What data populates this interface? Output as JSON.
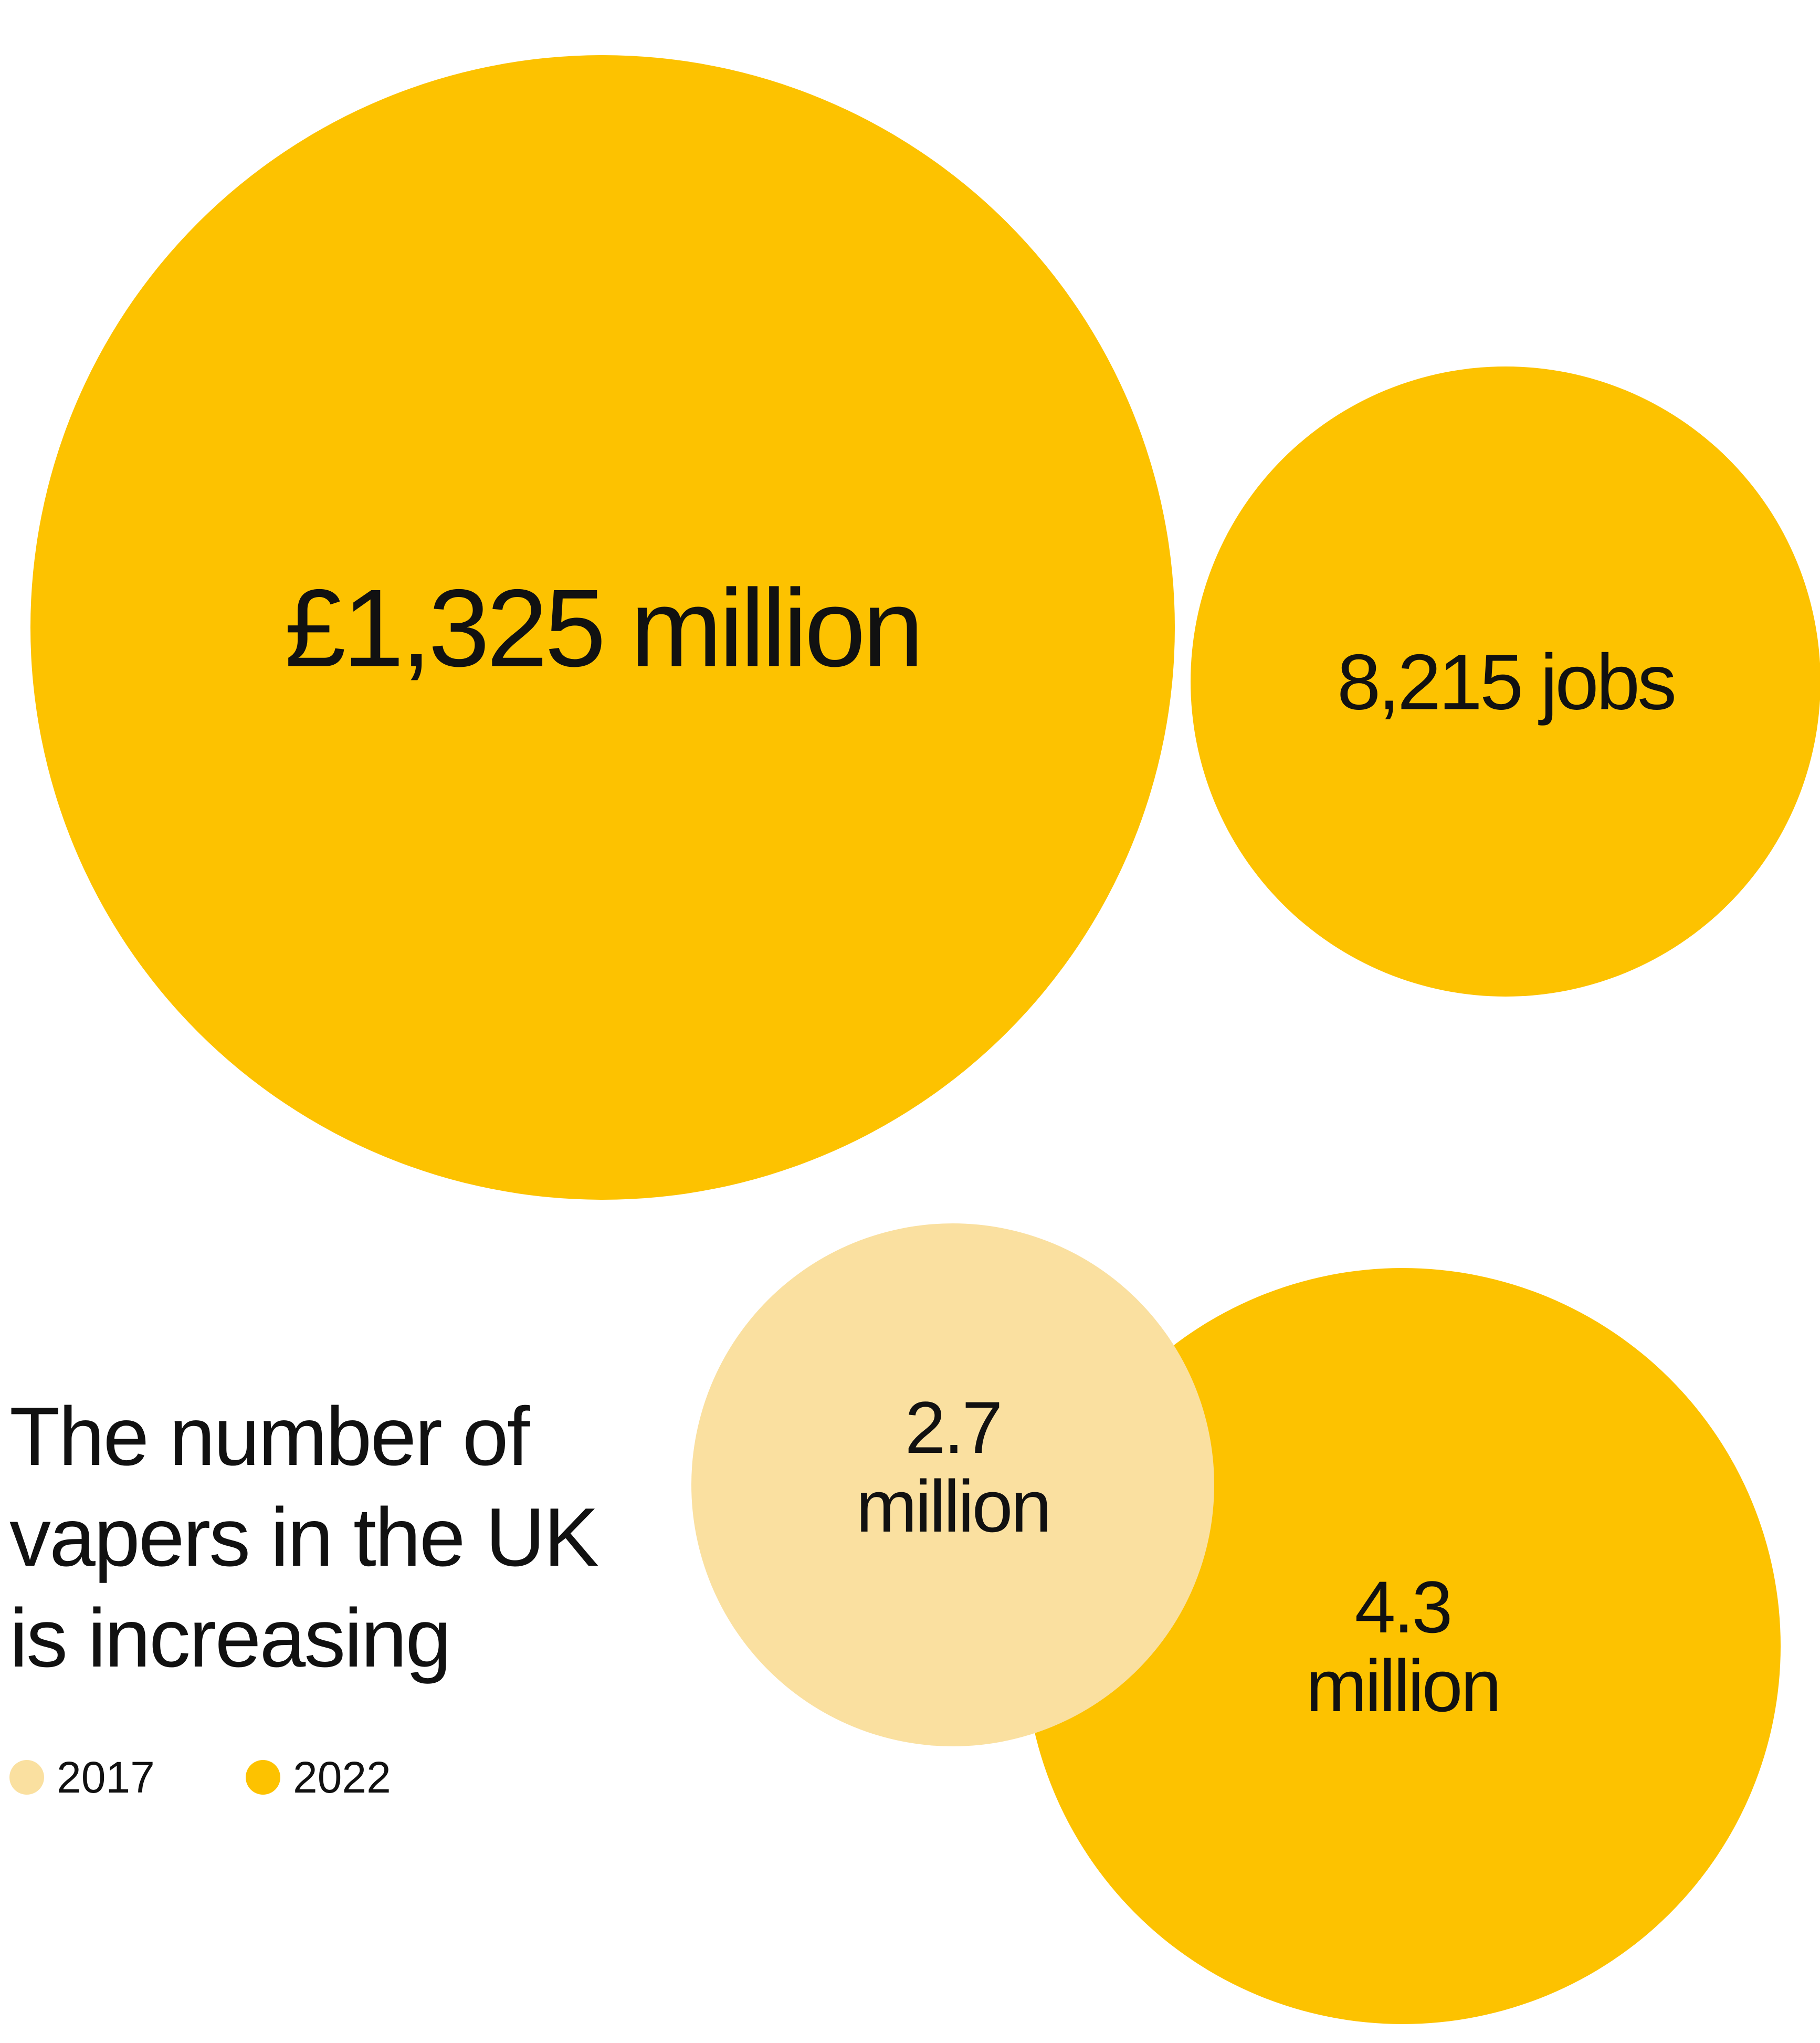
{
  "colors": {
    "primary": "#FDC200",
    "light": "#FAE0A0",
    "text": "#111111",
    "background": "#FFFFFF"
  },
  "heading": {
    "line1": "The number of",
    "line2": "vapers in the UK",
    "line3": "is increasing"
  },
  "legend": [
    {
      "label": "2017",
      "color": "#FAE0A0"
    },
    {
      "label": "2022",
      "color": "#FDC200"
    }
  ],
  "chart_data": {
    "type": "bubble",
    "bubbles": [
      {
        "id": "revenue",
        "lines": [
          "£1,325 million"
        ],
        "value": 1325,
        "unit": "£ million",
        "color": "#FDC200"
      },
      {
        "id": "jobs",
        "lines": [
          "8,215 jobs"
        ],
        "value": 8215,
        "unit": "jobs",
        "color": "#FDC200"
      },
      {
        "id": "vapers-2022",
        "lines": [
          "4.3",
          "million"
        ],
        "value": 4.3,
        "unit": "million",
        "year": "2022",
        "color": "#FDC200"
      },
      {
        "id": "vapers-2017",
        "lines": [
          "2.7",
          "million"
        ],
        "value": 2.7,
        "unit": "million",
        "year": "2017",
        "color": "#FAE0A0"
      }
    ]
  }
}
